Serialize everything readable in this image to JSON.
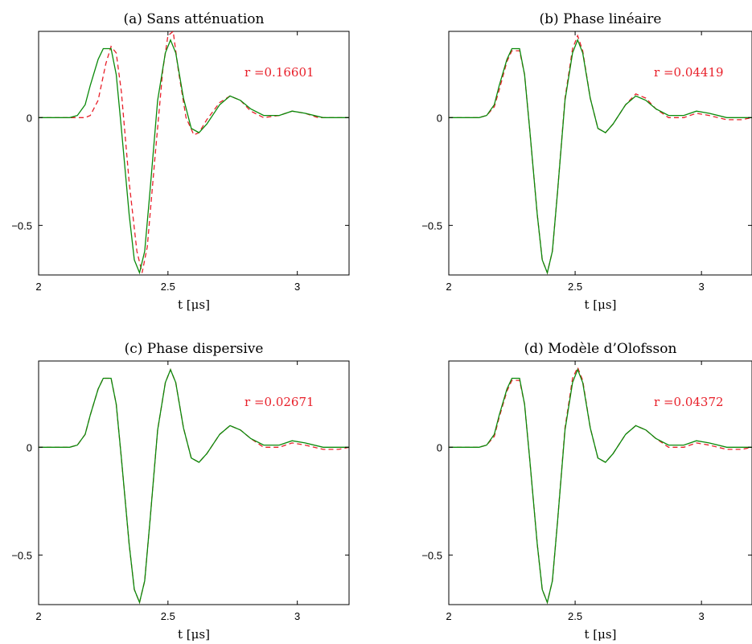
{
  "chart_data": [
    {
      "type": "line",
      "title": "(a) Sans atténuation",
      "xlabel": "t [μs]",
      "ylabel": "",
      "xlim": [
        2.0,
        3.2
      ],
      "ylim": [
        -0.73,
        0.4
      ],
      "xticks": [
        {
          "value": 2,
          "label": "2"
        },
        {
          "value": 2.5,
          "label": "2.5"
        },
        {
          "value": 3,
          "label": "3"
        }
      ],
      "yticks": [
        {
          "value": -0.5,
          "label": "−0.5"
        },
        {
          "value": 0,
          "label": "0"
        }
      ],
      "annotation": "r =0.16601",
      "grid": false,
      "series": [
        {
          "color": "#e8202a",
          "style": "dashed",
          "x": [
            2.0,
            2.18,
            2.2,
            2.23,
            2.26,
            2.28,
            2.3,
            2.32,
            2.35,
            2.38,
            2.4,
            2.42,
            2.45,
            2.48,
            2.5,
            2.52,
            2.54,
            2.57,
            2.6,
            2.62,
            2.65,
            2.7,
            2.74,
            2.78,
            2.82,
            2.87,
            2.93,
            2.98,
            3.03,
            3.08,
            3.13,
            3.2
          ],
          "y": [
            0.0,
            0.0,
            0.01,
            0.08,
            0.25,
            0.33,
            0.3,
            0.12,
            -0.3,
            -0.62,
            -0.72,
            -0.6,
            -0.18,
            0.22,
            0.38,
            0.4,
            0.22,
            0.0,
            -0.08,
            -0.07,
            -0.01,
            0.07,
            0.1,
            0.08,
            0.03,
            0.0,
            0.01,
            0.03,
            0.02,
            0.0,
            0.0,
            0.0
          ]
        },
        {
          "color": "#0a8a0a",
          "style": "solid",
          "x": [
            2.0,
            2.12,
            2.15,
            2.18,
            2.2,
            2.23,
            2.25,
            2.28,
            2.3,
            2.32,
            2.35,
            2.37,
            2.39,
            2.41,
            2.43,
            2.46,
            2.49,
            2.51,
            2.53,
            2.56,
            2.59,
            2.62,
            2.65,
            2.7,
            2.74,
            2.78,
            2.82,
            2.87,
            2.93,
            2.98,
            3.03,
            3.1,
            3.2
          ],
          "y": [
            0.0,
            0.0,
            0.01,
            0.06,
            0.15,
            0.27,
            0.32,
            0.32,
            0.2,
            -0.05,
            -0.45,
            -0.66,
            -0.72,
            -0.62,
            -0.35,
            0.08,
            0.3,
            0.36,
            0.3,
            0.09,
            -0.05,
            -0.07,
            -0.03,
            0.06,
            0.1,
            0.08,
            0.04,
            0.01,
            0.01,
            0.03,
            0.02,
            0.0,
            0.0
          ]
        }
      ]
    },
    {
      "type": "line",
      "title": "(b) Phase linéaire",
      "xlabel": "t [μs]",
      "ylabel": "",
      "xlim": [
        2.0,
        3.2
      ],
      "ylim": [
        -0.73,
        0.4
      ],
      "xticks": [
        {
          "value": 2,
          "label": "2"
        },
        {
          "value": 2.5,
          "label": "2.5"
        },
        {
          "value": 3,
          "label": "3"
        }
      ],
      "yticks": [
        {
          "value": -0.5,
          "label": "−0.5"
        },
        {
          "value": 0,
          "label": "0"
        }
      ],
      "annotation": "r =0.04419",
      "grid": false,
      "series": [
        {
          "color": "#e8202a",
          "style": "dashed",
          "x": [
            2.0,
            2.12,
            2.15,
            2.18,
            2.2,
            2.23,
            2.25,
            2.28,
            2.3,
            2.32,
            2.35,
            2.37,
            2.39,
            2.41,
            2.43,
            2.46,
            2.49,
            2.51,
            2.53,
            2.56,
            2.59,
            2.62,
            2.65,
            2.7,
            2.74,
            2.78,
            2.82,
            2.87,
            2.93,
            2.98,
            3.03,
            3.1,
            3.16,
            3.2
          ],
          "y": [
            0.0,
            0.0,
            0.01,
            0.05,
            0.13,
            0.26,
            0.31,
            0.31,
            0.2,
            -0.05,
            -0.45,
            -0.66,
            -0.72,
            -0.62,
            -0.35,
            0.09,
            0.32,
            0.38,
            0.31,
            0.09,
            -0.05,
            -0.07,
            -0.03,
            0.06,
            0.11,
            0.09,
            0.04,
            0.0,
            0.0,
            0.02,
            0.01,
            -0.01,
            -0.01,
            0.0
          ]
        },
        {
          "color": "#0a8a0a",
          "style": "solid",
          "x": [
            2.0,
            2.12,
            2.15,
            2.18,
            2.2,
            2.23,
            2.25,
            2.28,
            2.3,
            2.32,
            2.35,
            2.37,
            2.39,
            2.41,
            2.43,
            2.46,
            2.49,
            2.51,
            2.53,
            2.56,
            2.59,
            2.62,
            2.65,
            2.7,
            2.74,
            2.78,
            2.82,
            2.87,
            2.93,
            2.98,
            3.03,
            3.1,
            3.2
          ],
          "y": [
            0.0,
            0.0,
            0.01,
            0.06,
            0.15,
            0.27,
            0.32,
            0.32,
            0.2,
            -0.05,
            -0.45,
            -0.66,
            -0.72,
            -0.62,
            -0.35,
            0.08,
            0.3,
            0.36,
            0.3,
            0.09,
            -0.05,
            -0.07,
            -0.03,
            0.06,
            0.1,
            0.08,
            0.04,
            0.01,
            0.01,
            0.03,
            0.02,
            0.0,
            0.0
          ]
        }
      ]
    },
    {
      "type": "line",
      "title": "(c) Phase dispersive",
      "xlabel": "t [μs]",
      "ylabel": "",
      "xlim": [
        2.0,
        3.2
      ],
      "ylim": [
        -0.73,
        0.4
      ],
      "xticks": [
        {
          "value": 2,
          "label": "2"
        },
        {
          "value": 2.5,
          "label": "2.5"
        },
        {
          "value": 3,
          "label": "3"
        }
      ],
      "yticks": [
        {
          "value": -0.5,
          "label": "−0.5"
        },
        {
          "value": 0,
          "label": "0"
        }
      ],
      "annotation": "r =0.02671",
      "grid": false,
      "series": [
        {
          "color": "#e8202a",
          "style": "dashed",
          "x": [
            2.0,
            2.12,
            2.15,
            2.18,
            2.2,
            2.23,
            2.25,
            2.28,
            2.3,
            2.32,
            2.35,
            2.37,
            2.39,
            2.41,
            2.43,
            2.46,
            2.49,
            2.51,
            2.53,
            2.56,
            2.59,
            2.62,
            2.65,
            2.7,
            2.74,
            2.78,
            2.82,
            2.87,
            2.93,
            2.98,
            3.03,
            3.1,
            3.16,
            3.2
          ],
          "y": [
            0.0,
            0.0,
            0.01,
            0.06,
            0.15,
            0.27,
            0.32,
            0.32,
            0.2,
            -0.05,
            -0.45,
            -0.66,
            -0.72,
            -0.62,
            -0.35,
            0.08,
            0.3,
            0.36,
            0.3,
            0.09,
            -0.05,
            -0.07,
            -0.03,
            0.06,
            0.1,
            0.08,
            0.04,
            0.0,
            0.0,
            0.02,
            0.01,
            -0.01,
            -0.01,
            0.0
          ]
        },
        {
          "color": "#0a8a0a",
          "style": "solid",
          "x": [
            2.0,
            2.12,
            2.15,
            2.18,
            2.2,
            2.23,
            2.25,
            2.28,
            2.3,
            2.32,
            2.35,
            2.37,
            2.39,
            2.41,
            2.43,
            2.46,
            2.49,
            2.51,
            2.53,
            2.56,
            2.59,
            2.62,
            2.65,
            2.7,
            2.74,
            2.78,
            2.82,
            2.87,
            2.93,
            2.98,
            3.03,
            3.1,
            3.2
          ],
          "y": [
            0.0,
            0.0,
            0.01,
            0.06,
            0.15,
            0.27,
            0.32,
            0.32,
            0.2,
            -0.05,
            -0.45,
            -0.66,
            -0.72,
            -0.62,
            -0.35,
            0.08,
            0.3,
            0.36,
            0.3,
            0.09,
            -0.05,
            -0.07,
            -0.03,
            0.06,
            0.1,
            0.08,
            0.04,
            0.01,
            0.01,
            0.03,
            0.02,
            0.0,
            0.0
          ]
        }
      ]
    },
    {
      "type": "line",
      "title": "(d) Modèle d’Olofsson",
      "xlabel": "t [μs]",
      "ylabel": "",
      "xlim": [
        2.0,
        3.2
      ],
      "ylim": [
        -0.73,
        0.4
      ],
      "xticks": [
        {
          "value": 2,
          "label": "2"
        },
        {
          "value": 2.5,
          "label": "2.5"
        },
        {
          "value": 3,
          "label": "3"
        }
      ],
      "yticks": [
        {
          "value": -0.5,
          "label": "−0.5"
        },
        {
          "value": 0,
          "label": "0"
        }
      ],
      "annotation": "r =0.04372",
      "grid": false,
      "series": [
        {
          "color": "#e8202a",
          "style": "dashed",
          "x": [
            2.0,
            2.12,
            2.15,
            2.18,
            2.2,
            2.23,
            2.25,
            2.28,
            2.3,
            2.32,
            2.35,
            2.37,
            2.39,
            2.41,
            2.43,
            2.46,
            2.49,
            2.51,
            2.53,
            2.56,
            2.59,
            2.62,
            2.65,
            2.7,
            2.74,
            2.78,
            2.82,
            2.87,
            2.93,
            2.98,
            3.03,
            3.1,
            3.16,
            3.2
          ],
          "y": [
            0.0,
            0.0,
            0.01,
            0.05,
            0.14,
            0.26,
            0.31,
            0.31,
            0.2,
            -0.05,
            -0.45,
            -0.66,
            -0.72,
            -0.62,
            -0.35,
            0.09,
            0.32,
            0.37,
            0.31,
            0.09,
            -0.05,
            -0.07,
            -0.03,
            0.06,
            0.1,
            0.08,
            0.04,
            0.0,
            0.0,
            0.02,
            0.01,
            -0.01,
            -0.01,
            0.0
          ]
        },
        {
          "color": "#0a8a0a",
          "style": "solid",
          "x": [
            2.0,
            2.12,
            2.15,
            2.18,
            2.2,
            2.23,
            2.25,
            2.28,
            2.3,
            2.32,
            2.35,
            2.37,
            2.39,
            2.41,
            2.43,
            2.46,
            2.49,
            2.51,
            2.53,
            2.56,
            2.59,
            2.62,
            2.65,
            2.7,
            2.74,
            2.78,
            2.82,
            2.87,
            2.93,
            2.98,
            3.03,
            3.1,
            3.2
          ],
          "y": [
            0.0,
            0.0,
            0.01,
            0.06,
            0.15,
            0.27,
            0.32,
            0.32,
            0.2,
            -0.05,
            -0.45,
            -0.66,
            -0.72,
            -0.62,
            -0.35,
            0.08,
            0.3,
            0.36,
            0.3,
            0.09,
            -0.05,
            -0.07,
            -0.03,
            0.06,
            0.1,
            0.08,
            0.04,
            0.01,
            0.01,
            0.03,
            0.02,
            0.0,
            0.0
          ]
        }
      ]
    }
  ]
}
